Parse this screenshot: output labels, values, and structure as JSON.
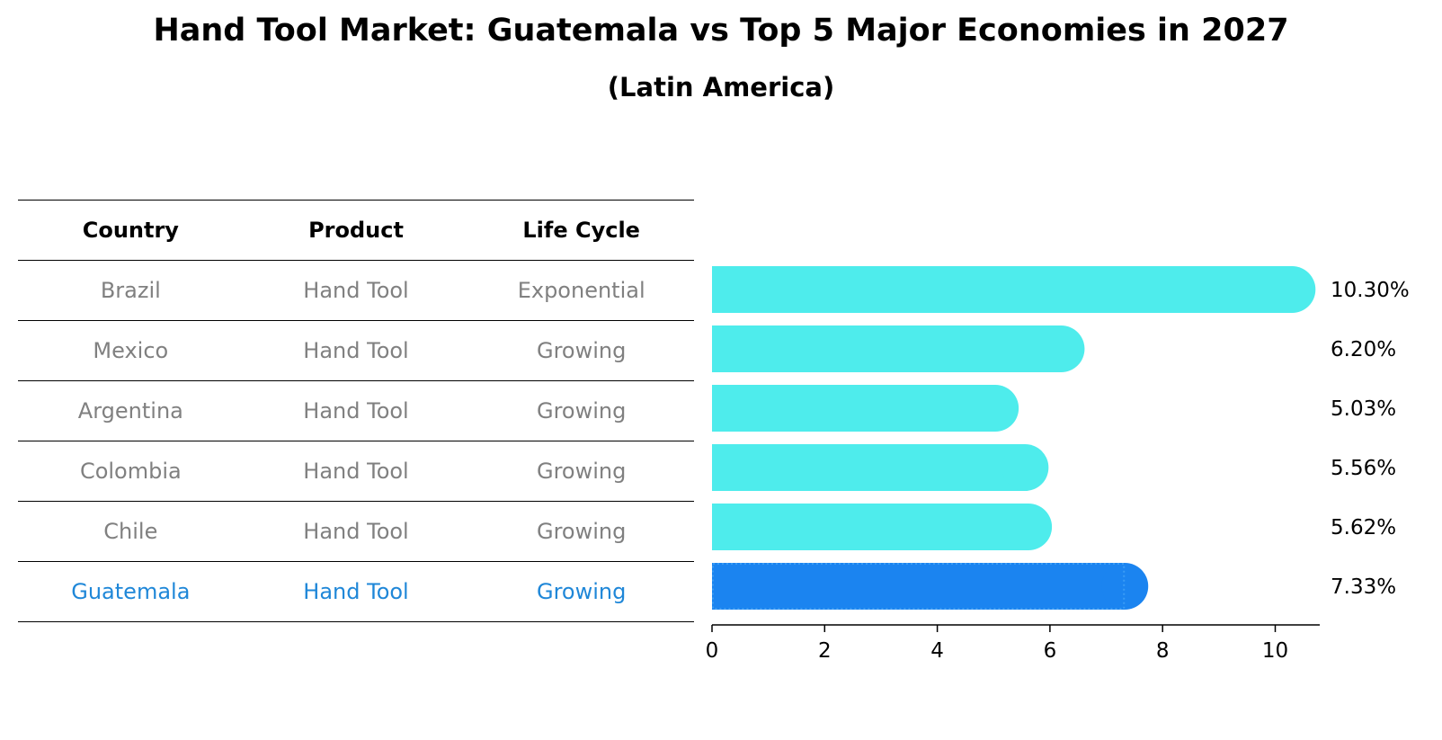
{
  "title": "Hand Tool Market: Guatemala vs Top 5 Major Economies in 2027",
  "subtitle": "(Latin America)",
  "table": {
    "headers": [
      "Country",
      "Product",
      "Life Cycle"
    ],
    "rows": [
      [
        "Brazil",
        "Hand Tool",
        "Exponential"
      ],
      [
        "Mexico",
        "Hand Tool",
        "Growing"
      ],
      [
        "Argentina",
        "Hand Tool",
        "Growing"
      ],
      [
        "Colombia",
        "Hand Tool",
        "Growing"
      ],
      [
        "Chile",
        "Hand Tool",
        "Growing"
      ],
      [
        "Guatemala",
        "Hand Tool",
        "Growing"
      ]
    ],
    "highlight_row": 5
  },
  "colors": {
    "bar": "#4eecec",
    "highlight_bar": "#1b84f0",
    "highlight_text": "#1f87d8",
    "muted_text": "#808080"
  },
  "chart_data": {
    "type": "bar",
    "orientation": "horizontal",
    "categories": [
      "Brazil",
      "Mexico",
      "Argentina",
      "Colombia",
      "Chile",
      "Guatemala"
    ],
    "values": [
      10.3,
      6.2,
      5.03,
      5.56,
      5.62,
      7.33
    ],
    "value_labels": [
      "10.30%",
      "6.20%",
      "5.03%",
      "5.56%",
      "5.62%",
      "7.33%"
    ],
    "highlight_index": 5,
    "xlim": [
      0,
      10.8
    ],
    "xticks": [
      0,
      2,
      4,
      6,
      8,
      10
    ],
    "xlabel": "",
    "ylabel": ""
  }
}
